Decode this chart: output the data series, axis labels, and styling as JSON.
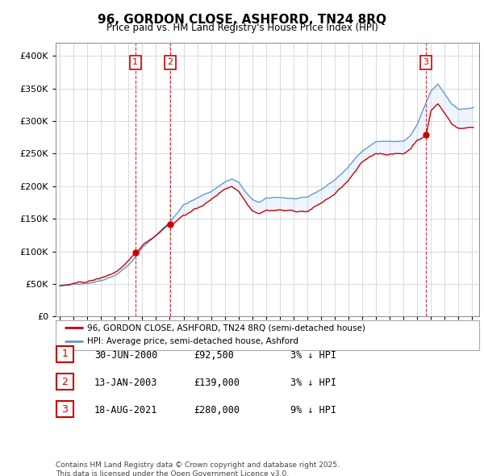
{
  "title": "96, GORDON CLOSE, ASHFORD, TN24 8RQ",
  "subtitle": "Price paid vs. HM Land Registry's House Price Index (HPI)",
  "ylim": [
    0,
    420000
  ],
  "xlim_start": 1994.7,
  "xlim_end": 2025.5,
  "sale_dates_num": [
    2000.496,
    2003.038,
    2021.629
  ],
  "sale_prices": [
    92500,
    139000,
    280000
  ],
  "sale_labels": [
    "1",
    "2",
    "3"
  ],
  "legend_line1": "96, GORDON CLOSE, ASHFORD, TN24 8RQ (semi-detached house)",
  "legend_line2": "HPI: Average price, semi-detached house, Ashford",
  "table_rows": [
    [
      "1",
      "30-JUN-2000",
      "£92,500",
      "3% ↓ HPI"
    ],
    [
      "2",
      "13-JAN-2003",
      "£139,000",
      "3% ↓ HPI"
    ],
    [
      "3",
      "18-AUG-2021",
      "£280,000",
      "9% ↓ HPI"
    ]
  ],
  "footer": "Contains HM Land Registry data © Crown copyright and database right 2025.\nThis data is licensed under the Open Government Licence v3.0.",
  "line_color_red": "#cc0000",
  "line_color_blue": "#6699cc",
  "shade_color_blue": "#cce0ff",
  "vline_color": "#cc0000",
  "box_color": "#cc0000",
  "grid_color": "#cccccc",
  "bg_color": "#ffffff"
}
